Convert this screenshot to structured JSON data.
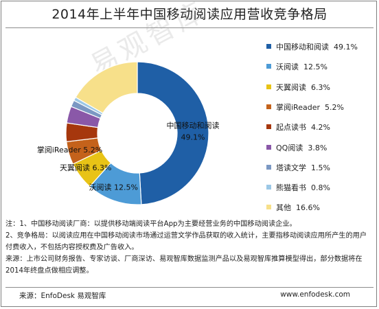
{
  "chart_data": {
    "type": "pie",
    "donut": true,
    "title": "2014年上半年中国移动阅读应用营收竞争格局",
    "slices": [
      {
        "name": "中国移动和阅读",
        "value": 49.1,
        "value_label": "49.1%",
        "color": "#1f5fa6",
        "outside_label": "",
        "inside_label": "中国移动和阅读",
        "inside_value": "49.1%"
      },
      {
        "name": "沃阅读",
        "value": 12.5,
        "value_label": "12.5%",
        "color": "#4d9bd6",
        "outside_label": "沃阅读  12.5%"
      },
      {
        "name": "天翼阅读",
        "value": 6.3,
        "value_label": "6.3%",
        "color": "#e8c316",
        "outside_label": "天翼阅读  6.3%"
      },
      {
        "name": "掌阅iReader",
        "value": 5.2,
        "value_label": "5.2%",
        "color": "#c4621b",
        "outside_label": "掌阅iReader  5.2%"
      },
      {
        "name": "起点读书",
        "value": 4.2,
        "value_label": "4.2%",
        "color": "#a6370d",
        "outside_label": ""
      },
      {
        "name": "QQ阅读",
        "value": 3.8,
        "value_label": "3.8%",
        "color": "#8a58a8",
        "outside_label": ""
      },
      {
        "name": "塔读文学",
        "value": 1.5,
        "value_label": "1.5%",
        "color": "#7b98c3",
        "outside_label": ""
      },
      {
        "name": "熊猫看书",
        "value": 0.8,
        "value_label": "0.8%",
        "color": "#9cc8e6",
        "outside_label": ""
      },
      {
        "name": "其他",
        "value": 16.6,
        "value_label": "16.6%",
        "color": "#f7e08a",
        "outside_label": ""
      }
    ],
    "legend_position": "right"
  },
  "notes": {
    "line1": "注：1、中国移动阅读厂商：以提供移动端阅读平台App为主要经营业务的中国移动阅读企业。",
    "line2": "2、竞争格局：以阅读应用在中国移动阅读市场通过运营文学作品获取的收入统计，主要指移动阅读应用所产生的用户付费收入，不包括内容授权费及广告收入。",
    "line3": "来源：上市公司财务报告、专家访谈、厂商深访、易观智库数据监测产品以及易观智库推算模型得出，部分数据将在2014年终盘点做相应调整。"
  },
  "footer": {
    "source": "来源：EnfoDesk 易观智库",
    "url": "www.enfodesk.com"
  },
  "watermark": "易观智库"
}
